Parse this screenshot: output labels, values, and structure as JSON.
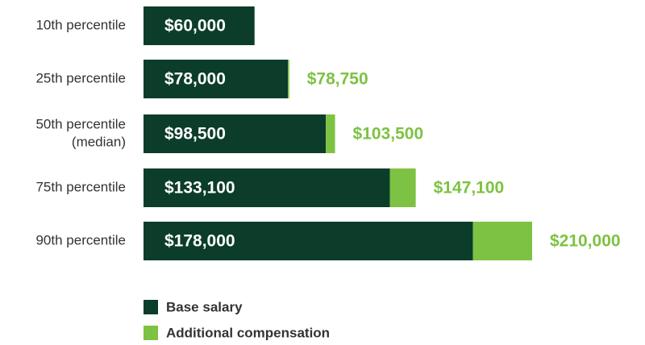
{
  "chart_data": {
    "type": "stacked-bar-horizontal",
    "categories": [
      [
        "10th percentile"
      ],
      [
        "25th percentile"
      ],
      [
        "50th percentile",
        "(median)"
      ],
      [
        "75th percentile"
      ],
      [
        "90th percentile"
      ]
    ],
    "series": [
      {
        "name": "Base salary",
        "color": "#0b3d2a",
        "values": [
          60000,
          78000,
          98500,
          133100,
          178000
        ],
        "value_labels": [
          "$60,000",
          "$78,000",
          "$98,500",
          "$133,100",
          "$178,000"
        ]
      },
      {
        "name": "Additional compensation",
        "color": "#7dc242",
        "values": [
          0,
          750,
          5000,
          14000,
          32000
        ]
      }
    ],
    "totals": [
      null,
      78750,
      103500,
      147100,
      210000
    ],
    "total_labels": [
      null,
      "$78,750",
      "$103,500",
      "$147,100",
      "$210,000"
    ]
  }
}
